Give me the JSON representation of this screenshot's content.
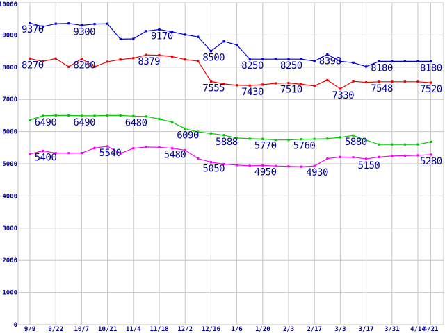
{
  "chart_data": {
    "type": "line",
    "title": "",
    "xlabel": "",
    "ylabel": "",
    "ylim": [
      0,
      10000
    ],
    "grid": "on",
    "legend": "none",
    "background": "#ffffff",
    "grid_color": "#c6c6c6",
    "label_color": "#000099",
    "n_points": 32,
    "y_ticks": [
      0,
      1000,
      2000,
      3000,
      4000,
      5000,
      6000,
      7000,
      8000,
      9000,
      10000
    ],
    "x_ticks": [
      {
        "point": 0,
        "label": "9/9"
      },
      {
        "point": 2,
        "label": "9/22"
      },
      {
        "point": 4,
        "label": "10/7"
      },
      {
        "point": 6,
        "label": "10/21"
      },
      {
        "point": 8,
        "label": "11/4"
      },
      {
        "point": 10,
        "label": "11/18"
      },
      {
        "point": 12,
        "label": "12/2"
      },
      {
        "point": 14,
        "label": "12/16"
      },
      {
        "point": 16,
        "label": "1/6"
      },
      {
        "point": 18,
        "label": "1/20"
      },
      {
        "point": 20,
        "label": "2/3"
      },
      {
        "point": 22,
        "label": "2/17"
      },
      {
        "point": 24,
        "label": "3/3"
      },
      {
        "point": 26,
        "label": "3/17"
      },
      {
        "point": 28,
        "label": "3/31"
      },
      {
        "point": 30,
        "label": "4/14"
      },
      {
        "point": 31,
        "label": "4/21"
      }
    ],
    "series": [
      {
        "name": "blue",
        "color": "#0000dd",
        "values": [
          9370,
          9260,
          9350,
          9360,
          9300,
          9340,
          9350,
          8870,
          8880,
          9120,
          9170,
          9100,
          9010,
          8940,
          8500,
          8800,
          8690,
          8250,
          8250,
          8250,
          8250,
          8250,
          8190,
          8398,
          8180,
          8140,
          8020,
          8180,
          8180,
          8180,
          8180,
          8180
        ],
        "point_labels": [
          {
            "point": 0,
            "text": "9370"
          },
          {
            "point": 4,
            "text": "9300"
          },
          {
            "point": 10,
            "text": "9170"
          },
          {
            "point": 14,
            "text": "8500"
          },
          {
            "point": 17,
            "text": "8250"
          },
          {
            "point": 20,
            "text": "8250"
          },
          {
            "point": 23,
            "text": "8398"
          },
          {
            "point": 27,
            "text": "8180"
          },
          {
            "point": 31,
            "text": "8180"
          }
        ]
      },
      {
        "name": "red",
        "color": "#ee0000",
        "values": [
          8270,
          8180,
          8270,
          8010,
          8260,
          8010,
          8170,
          8240,
          8280,
          8379,
          8370,
          8330,
          8240,
          8190,
          7555,
          7480,
          7440,
          7430,
          7460,
          7500,
          7510,
          7470,
          7420,
          7600,
          7330,
          7560,
          7530,
          7548,
          7548,
          7548,
          7548,
          7520
        ],
        "point_labels": [
          {
            "point": 0,
            "text": "8270"
          },
          {
            "point": 4,
            "text": "8260"
          },
          {
            "point": 9,
            "text": "8379"
          },
          {
            "point": 14,
            "text": "7555"
          },
          {
            "point": 17,
            "text": "7430"
          },
          {
            "point": 20,
            "text": "7510"
          },
          {
            "point": 24,
            "text": "7330"
          },
          {
            "point": 27,
            "text": "7548"
          },
          {
            "point": 31,
            "text": "7520"
          }
        ]
      },
      {
        "name": "green",
        "color": "#00cc00",
        "values": [
          6360,
          6490,
          6500,
          6500,
          6490,
          6490,
          6500,
          6500,
          6480,
          6470,
          6390,
          6290,
          6090,
          5990,
          5940,
          5888,
          5800,
          5780,
          5770,
          5740,
          5740,
          5760,
          5770,
          5780,
          5820,
          5880,
          5730,
          5600,
          5600,
          5600,
          5600,
          5680
        ],
        "point_labels": [
          {
            "point": 1,
            "text": "6490"
          },
          {
            "point": 4,
            "text": "6490"
          },
          {
            "point": 8,
            "text": "6480"
          },
          {
            "point": 12,
            "text": "6090"
          },
          {
            "point": 15,
            "text": "5888"
          },
          {
            "point": 18,
            "text": "5770"
          },
          {
            "point": 21,
            "text": "5760"
          },
          {
            "point": 25,
            "text": "5880"
          }
        ]
      },
      {
        "name": "magenta",
        "color": "#ff00ff",
        "values": [
          5300,
          5400,
          5330,
          5330,
          5330,
          5490,
          5540,
          5320,
          5480,
          5520,
          5510,
          5480,
          5420,
          5160,
          5050,
          4990,
          4960,
          4940,
          4950,
          4930,
          4920,
          4910,
          4930,
          5160,
          5210,
          5200,
          5150,
          5210,
          5240,
          5250,
          5260,
          5280
        ],
        "point_labels": [
          {
            "point": 1,
            "text": "5400"
          },
          {
            "point": 6,
            "text": "5540"
          },
          {
            "point": 11,
            "text": "5480"
          },
          {
            "point": 14,
            "text": "5050"
          },
          {
            "point": 18,
            "text": "4950"
          },
          {
            "point": 22,
            "text": "4930"
          },
          {
            "point": 26,
            "text": "5150"
          },
          {
            "point": 31,
            "text": "5280"
          }
        ]
      }
    ]
  }
}
